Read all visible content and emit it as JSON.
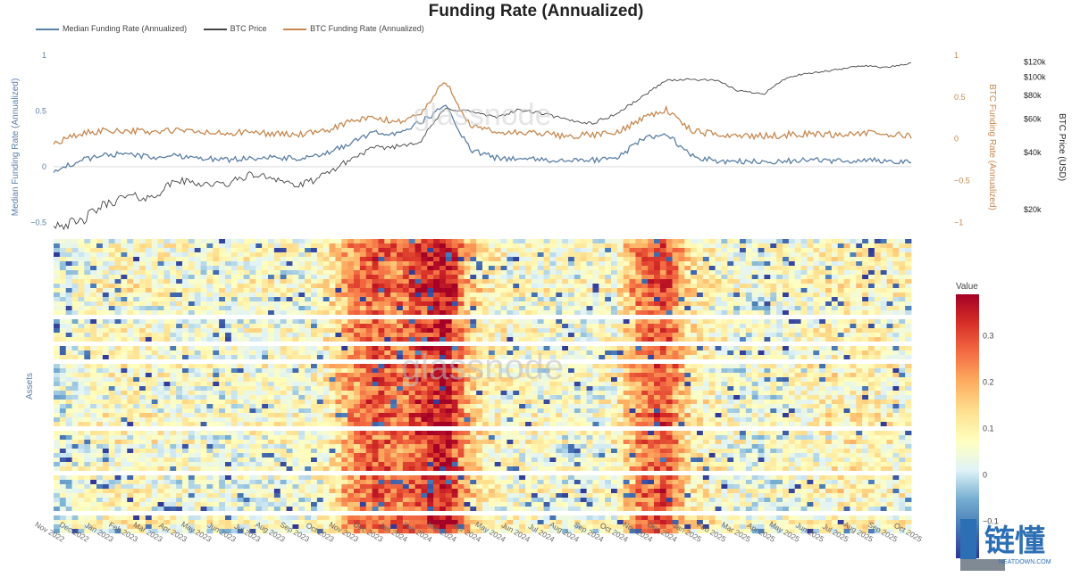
{
  "chart_data": [
    {
      "type": "line",
      "title": "Funding Rate (Annualized)",
      "x": [
        "Nov 2022",
        "Dec 2022",
        "Jan 2023",
        "Feb 2023",
        "Mar 2023",
        "Apr 2023",
        "May 2023",
        "Jun 2023",
        "Jul 2023",
        "Aug 2023",
        "Sep 2023",
        "Oct 2023",
        "Nov 2023",
        "Dec 2023",
        "Jan 2024",
        "Feb 2024",
        "Mar 2024",
        "Apr 2024",
        "May 2024",
        "Jun 2024",
        "Jul 2024",
        "Aug 2024",
        "Sep 2024",
        "Oct 2024",
        "Nov 2024",
        "Dec 2024",
        "Jan 2025",
        "Feb 2025",
        "Mar 2025",
        "Apr 2025",
        "May 2025",
        "Jun 2025",
        "Jul 2025",
        "Aug 2025",
        "Sep 2025",
        "Oct 2025"
      ],
      "series": [
        {
          "name": "Median Funding Rate (Annualized)",
          "axis": "left",
          "color": "#5b7fa6",
          "values": [
            -0.05,
            0.05,
            0.1,
            0.12,
            0.08,
            0.1,
            0.08,
            0.06,
            0.08,
            0.08,
            0.07,
            0.1,
            0.2,
            0.3,
            0.3,
            0.4,
            0.55,
            0.15,
            0.08,
            0.07,
            0.06,
            0.05,
            0.06,
            0.07,
            0.25,
            0.3,
            0.1,
            0.05,
            0.05,
            0.04,
            0.05,
            0.06,
            0.05,
            0.06,
            0.05,
            0.04
          ]
        },
        {
          "name": "BTC Price",
          "axis": "right2",
          "color": "#444444",
          "values": [
            17000,
            16800,
            21000,
            23500,
            23000,
            28500,
            27500,
            27000,
            30500,
            29500,
            26500,
            30000,
            36000,
            42000,
            43000,
            46000,
            68000,
            66000,
            61000,
            67000,
            64000,
            59000,
            57000,
            64000,
            78000,
            96000,
            97000,
            96000,
            84000,
            82000,
            100000,
            105000,
            109000,
            115000,
            112000,
            118000
          ]
        },
        {
          "name": "BTC Funding Rate (Annualized)",
          "axis": "right",
          "color": "#c7884f",
          "values": [
            -0.05,
            0.05,
            0.1,
            0.1,
            0.08,
            0.1,
            0.08,
            0.06,
            0.08,
            0.06,
            0.05,
            0.08,
            0.2,
            0.25,
            0.2,
            0.3,
            0.7,
            0.15,
            0.08,
            0.07,
            0.06,
            0.03,
            0.05,
            0.07,
            0.25,
            0.35,
            0.1,
            0.05,
            0.04,
            0.03,
            0.05,
            0.06,
            0.05,
            0.07,
            0.05,
            0.04
          ]
        }
      ],
      "ylabel": "Median Funding Rate (Annualized)",
      "ylim": [
        -0.65,
        1.0
      ],
      "yticks": [
        "1",
        "0.5",
        "0",
        "−0.5"
      ],
      "y2label": "BTC Funding Rate (Annualized)",
      "y2lim": [
        -1.2,
        1.0
      ],
      "y2ticks": [
        "1",
        "0.5",
        "0",
        "−0.5",
        "−1"
      ],
      "y3label": "BTC Price (USD)",
      "y3ticks": [
        "$120k",
        "$100k",
        "$80k",
        "$60k",
        "$40k",
        "$20k"
      ],
      "legend": "top-left"
    },
    {
      "type": "heatmap",
      "ylabel": "Assets",
      "colorbar_title": "Value",
      "colorbar_ticks": [
        "0.3",
        "0.2",
        "0.1",
        "0",
        "−0.1"
      ],
      "zlim": [
        -0.18,
        0.39
      ],
      "colorscale": [
        "#313695",
        "#4575b4",
        "#74add1",
        "#e0f3f8",
        "#ffffbf",
        "#fee090",
        "#fdae61",
        "#f46d43",
        "#d73027",
        "#a50026"
      ],
      "xticks": [
        "Nov 2022",
        "Dec 2022",
        "Jan 2023",
        "Feb 2023",
        "Mar 2023",
        "Apr 2023",
        "May 2023",
        "Jun 2023",
        "Jul 2023",
        "Aug 2023",
        "Sep 2023",
        "Oct 2023",
        "Nov 2023",
        "Dec 2023",
        "Jan 2024",
        "Feb 2024",
        "Mar 2024",
        "Apr 2024",
        "May 2024",
        "Jun 2024",
        "Jul 2024",
        "Aug 2024",
        "Sep 2024",
        "Oct 2024",
        "Nov 2024",
        "Dec 2024",
        "Jan 2025",
        "Feb 2025",
        "Mar 2025",
        "Apr 2025",
        "May 2025",
        "Jun 2025",
        "Jul 2025",
        "Aug 2025",
        "Sep 2025",
        "Oct 2025"
      ],
      "monthly_mean": [
        0.03,
        0.05,
        0.07,
        0.08,
        0.07,
        0.06,
        0.05,
        0.05,
        0.06,
        0.06,
        0.05,
        0.08,
        0.2,
        0.28,
        0.25,
        0.3,
        0.38,
        0.15,
        0.08,
        0.07,
        0.06,
        0.05,
        0.05,
        0.07,
        0.25,
        0.3,
        0.12,
        0.08,
        0.05,
        0.04,
        0.06,
        0.07,
        0.09,
        0.1,
        0.08,
        0.07
      ]
    }
  ],
  "watermark": {
    "brand": "glassnode",
    "logo_text": "链懂",
    "logo_sub": "NEATDOWN.COM"
  }
}
